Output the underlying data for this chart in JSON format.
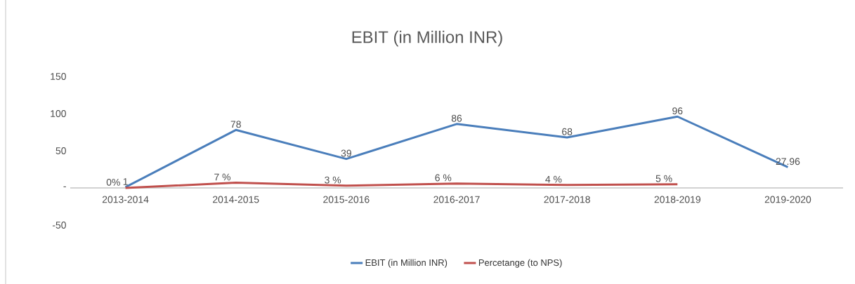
{
  "chart_data": {
    "type": "line",
    "title": "EBIT (in Million INR)",
    "categories": [
      "2013-2014",
      "2014-2015",
      "2015-2016",
      "2016-2017",
      "2017-2018",
      "2018-2019",
      "2019-2020"
    ],
    "series": [
      {
        "name": "EBIT (in Million INR)",
        "color": "#4a7ebb",
        "values": [
          1,
          78,
          39,
          86,
          68,
          96,
          27.96
        ],
        "value_labels": [
          "1",
          "78",
          "39",
          "86",
          "68",
          "96",
          "27.96"
        ]
      },
      {
        "name": "Percetange (to NPS)",
        "color": "#c0504d",
        "values": [
          0,
          7,
          3,
          6,
          4,
          5,
          null
        ],
        "value_labels": [
          "0%",
          "7 %",
          "3 %",
          "6 %",
          "4 %",
          "5 %",
          null
        ]
      }
    ],
    "ylim": [
      -50,
      150
    ],
    "yticks": [
      {
        "value": -50,
        "label": "-50"
      },
      {
        "value": 0,
        "label": "-"
      },
      {
        "value": 50,
        "label": "50"
      },
      {
        "value": 100,
        "label": "100"
      },
      {
        "value": 150,
        "label": "150"
      }
    ],
    "grid": false,
    "legend": "bottom",
    "marker": "none",
    "line_style": "solid"
  }
}
